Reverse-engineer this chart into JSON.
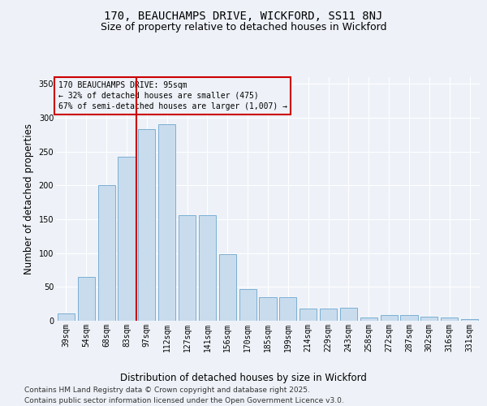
{
  "title1": "170, BEAUCHAMPS DRIVE, WICKFORD, SS11 8NJ",
  "title2": "Size of property relative to detached houses in Wickford",
  "xlabel": "Distribution of detached houses by size in Wickford",
  "ylabel": "Number of detached properties",
  "categories": [
    "39sqm",
    "54sqm",
    "68sqm",
    "83sqm",
    "97sqm",
    "112sqm",
    "127sqm",
    "141sqm",
    "156sqm",
    "170sqm",
    "185sqm",
    "199sqm",
    "214sqm",
    "229sqm",
    "243sqm",
    "258sqm",
    "272sqm",
    "287sqm",
    "302sqm",
    "316sqm",
    "331sqm"
  ],
  "values": [
    11,
    65,
    201,
    242,
    283,
    291,
    156,
    156,
    99,
    47,
    35,
    35,
    18,
    18,
    19,
    5,
    9,
    8,
    6,
    5,
    3
  ],
  "bar_color": "#c9dced",
  "bar_edge_color": "#7bafd4",
  "vline_x": 3.5,
  "vline_color": "#cc0000",
  "annotation_title": "170 BEAUCHAMPS DRIVE: 95sqm",
  "annotation_line2": "← 32% of detached houses are smaller (475)",
  "annotation_line3": "67% of semi-detached houses are larger (1,007) →",
  "annotation_box_edgecolor": "#cc0000",
  "ylim": [
    0,
    360
  ],
  "yticks": [
    0,
    50,
    100,
    150,
    200,
    250,
    300,
    350
  ],
  "footer1": "Contains HM Land Registry data © Crown copyright and database right 2025.",
  "footer2": "Contains public sector information licensed under the Open Government Licence v3.0.",
  "background_color": "#eef2f8",
  "grid_color": "#ffffff",
  "title_fontsize": 10,
  "subtitle_fontsize": 9,
  "axis_label_fontsize": 8.5,
  "tick_fontsize": 7,
  "annotation_fontsize": 7,
  "footer_fontsize": 6.5
}
